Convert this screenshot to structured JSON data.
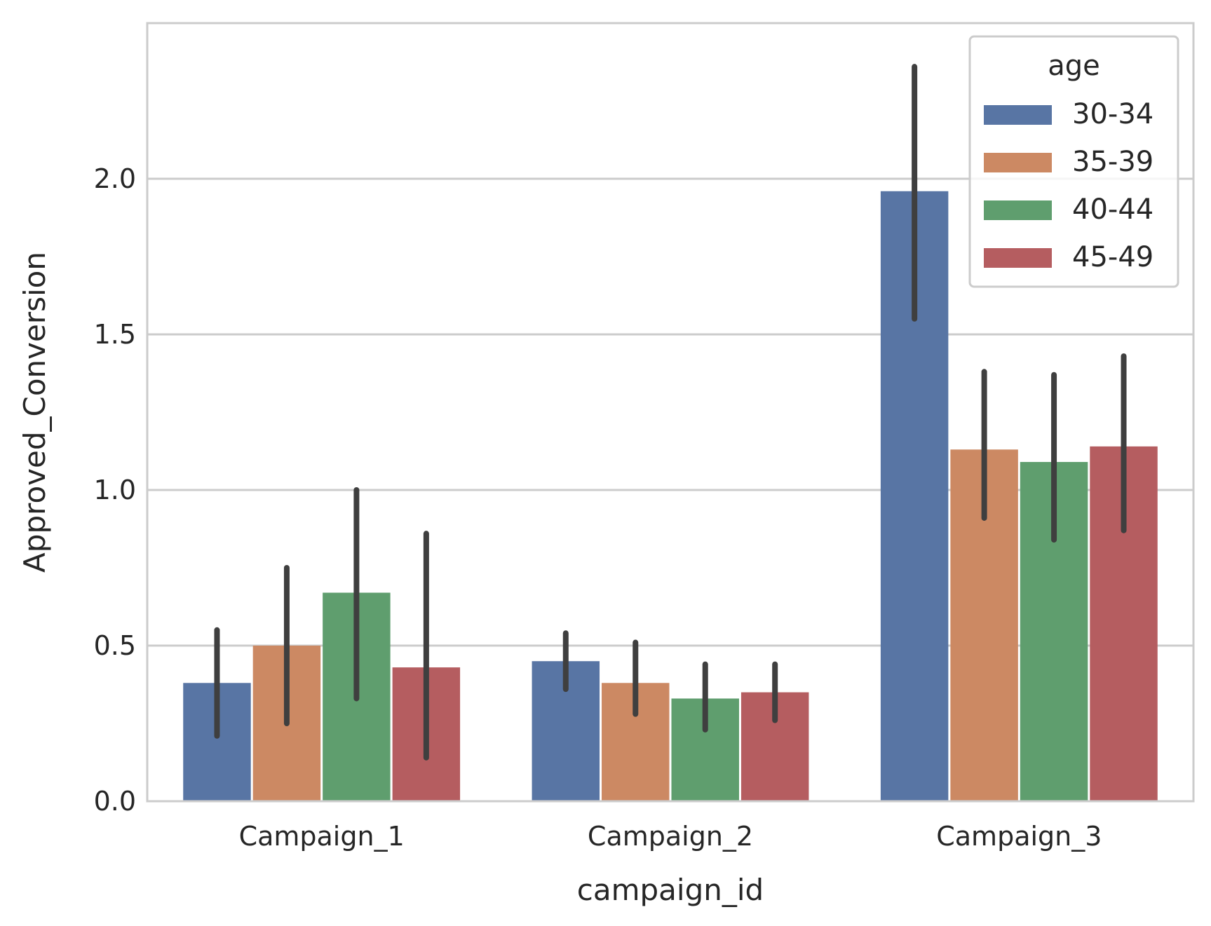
{
  "chart_data": {
    "type": "bar",
    "xlabel": "campaign_id",
    "ylabel": "Approved_Conversion",
    "categories": [
      "Campaign_1",
      "Campaign_2",
      "Campaign_3"
    ],
    "ylim": [
      0,
      2.5
    ],
    "yticks": [
      "0.0",
      "0.5",
      "1.0",
      "1.5",
      "2.0"
    ],
    "grid": true,
    "legend": {
      "title": "age",
      "placement": "top-right"
    },
    "series": [
      {
        "name": "30-34",
        "color": "#5875a4",
        "values": [
          0.38,
          0.45,
          1.96
        ],
        "ci": [
          [
            0.21,
            0.55
          ],
          [
            0.36,
            0.54
          ],
          [
            1.55,
            2.36
          ]
        ]
      },
      {
        "name": "35-39",
        "color": "#cc8963",
        "values": [
          0.5,
          0.38,
          1.13
        ],
        "ci": [
          [
            0.25,
            0.75
          ],
          [
            0.28,
            0.51
          ],
          [
            0.91,
            1.38
          ]
        ]
      },
      {
        "name": "40-44",
        "color": "#5f9e6e",
        "values": [
          0.67,
          0.33,
          1.09
        ],
        "ci": [
          [
            0.33,
            1.0
          ],
          [
            0.23,
            0.44
          ],
          [
            0.84,
            1.37
          ]
        ]
      },
      {
        "name": "45-49",
        "color": "#b55d60",
        "values": [
          0.43,
          0.35,
          1.14
        ],
        "ci": [
          [
            0.14,
            0.86
          ],
          [
            0.26,
            0.44
          ],
          [
            0.87,
            1.43
          ]
        ]
      }
    ],
    "colors": {
      "grid": "#cccccc",
      "axes_edge": "#cccccc",
      "error_bar": "#3f3f3f",
      "text": "#262626"
    }
  }
}
